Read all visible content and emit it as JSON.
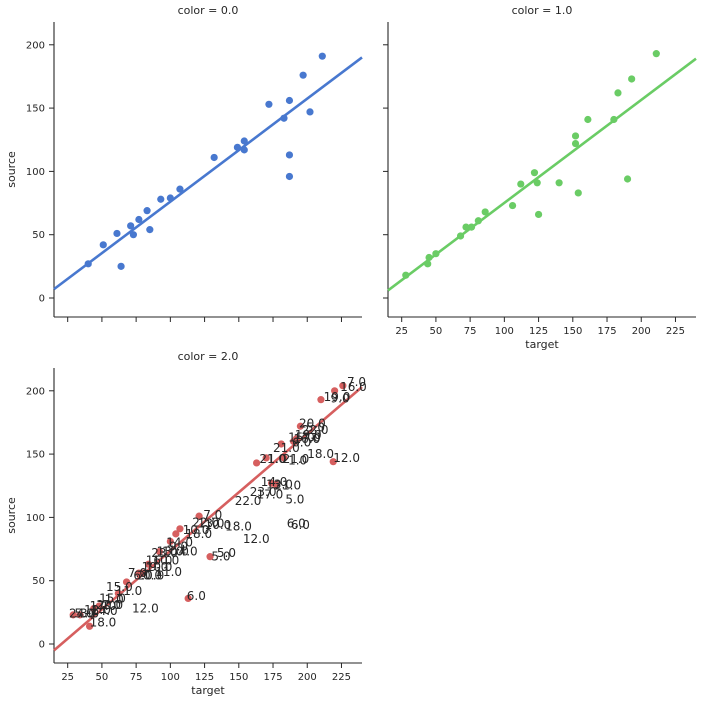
{
  "chart_data": {
    "type": "scatter",
    "layout": "facet-grid 2x2 (color = 0.0, 1.0, 2.0)",
    "xlabel": "target",
    "ylabel": "source",
    "xlim": [
      15,
      240
    ],
    "ylim": [
      -15,
      218
    ],
    "x_ticks": [
      25,
      50,
      75,
      100,
      125,
      150,
      175,
      200,
      225
    ],
    "y_ticks": [
      0,
      50,
      100,
      150,
      200
    ],
    "panels": [
      {
        "title": "color = 0.0",
        "color": "#4878cf",
        "fit_line": {
          "x": [
            15,
            240
          ],
          "y": [
            7,
            190
          ]
        },
        "points": [
          {
            "x": 40,
            "y": 27
          },
          {
            "x": 51,
            "y": 42
          },
          {
            "x": 61,
            "y": 51
          },
          {
            "x": 64,
            "y": 25
          },
          {
            "x": 71,
            "y": 57
          },
          {
            "x": 73,
            "y": 50
          },
          {
            "x": 77,
            "y": 62
          },
          {
            "x": 83,
            "y": 69
          },
          {
            "x": 85,
            "y": 54
          },
          {
            "x": 93,
            "y": 78
          },
          {
            "x": 100,
            "y": 79
          },
          {
            "x": 107,
            "y": 86
          },
          {
            "x": 132,
            "y": 111
          },
          {
            "x": 149,
            "y": 119
          },
          {
            "x": 154,
            "y": 124
          },
          {
            "x": 154,
            "y": 117
          },
          {
            "x": 172,
            "y": 153
          },
          {
            "x": 183,
            "y": 142
          },
          {
            "x": 187,
            "y": 156
          },
          {
            "x": 187,
            "y": 113
          },
          {
            "x": 187,
            "y": 96
          },
          {
            "x": 197,
            "y": 176
          },
          {
            "x": 202,
            "y": 147
          },
          {
            "x": 211,
            "y": 191
          }
        ]
      },
      {
        "title": "color = 1.0",
        "color": "#6acc65",
        "fit_line": {
          "x": [
            15,
            240
          ],
          "y": [
            6,
            189
          ]
        },
        "points": [
          {
            "x": 28,
            "y": 18
          },
          {
            "x": 44,
            "y": 27
          },
          {
            "x": 45,
            "y": 32
          },
          {
            "x": 50,
            "y": 35
          },
          {
            "x": 68,
            "y": 49
          },
          {
            "x": 72,
            "y": 56
          },
          {
            "x": 76,
            "y": 56
          },
          {
            "x": 81,
            "y": 61
          },
          {
            "x": 86,
            "y": 68
          },
          {
            "x": 106,
            "y": 73
          },
          {
            "x": 112,
            "y": 90
          },
          {
            "x": 122,
            "y": 99
          },
          {
            "x": 124,
            "y": 91
          },
          {
            "x": 125,
            "y": 66
          },
          {
            "x": 140,
            "y": 91
          },
          {
            "x": 152,
            "y": 128
          },
          {
            "x": 152,
            "y": 122
          },
          {
            "x": 154,
            "y": 83
          },
          {
            "x": 161,
            "y": 141
          },
          {
            "x": 180,
            "y": 141
          },
          {
            "x": 183,
            "y": 162
          },
          {
            "x": 190,
            "y": 94
          },
          {
            "x": 193,
            "y": 173
          },
          {
            "x": 211,
            "y": 193
          }
        ]
      },
      {
        "title": "color = 2.0",
        "color": "#d65f5f",
        "fit_line": {
          "x": [
            15,
            240
          ],
          "y": [
            -5,
            203
          ]
        },
        "points": [
          {
            "x": 29,
            "y": 23
          },
          {
            "x": 34,
            "y": 23
          },
          {
            "x": 41,
            "y": 14
          },
          {
            "x": 44,
            "y": 28
          },
          {
            "x": 48,
            "y": 30
          },
          {
            "x": 62,
            "y": 40
          },
          {
            "x": 68,
            "y": 49
          },
          {
            "x": 77,
            "y": 56
          },
          {
            "x": 80,
            "y": 56
          },
          {
            "x": 84,
            "y": 63
          },
          {
            "x": 92,
            "y": 73
          },
          {
            "x": 100,
            "y": 81
          },
          {
            "x": 104,
            "y": 87
          },
          {
            "x": 107,
            "y": 91
          },
          {
            "x": 113,
            "y": 36
          },
          {
            "x": 121,
            "y": 101
          },
          {
            "x": 129,
            "y": 69
          },
          {
            "x": 163,
            "y": 143
          },
          {
            "x": 170,
            "y": 147
          },
          {
            "x": 174,
            "y": 127
          },
          {
            "x": 177,
            "y": 126
          },
          {
            "x": 181,
            "y": 158
          },
          {
            "x": 183,
            "y": 147
          },
          {
            "x": 190,
            "y": 160
          },
          {
            "x": 192,
            "y": 162
          },
          {
            "x": 195,
            "y": 172
          },
          {
            "x": 210,
            "y": 193
          },
          {
            "x": 219,
            "y": 144
          },
          {
            "x": 220,
            "y": 200
          },
          {
            "x": 226,
            "y": 204
          }
        ],
        "annotations": [
          {
            "x": 229,
            "y": 207,
            "text": "7.0"
          },
          {
            "x": 224,
            "y": 203,
            "text": "16.0"
          },
          {
            "x": 212,
            "y": 195,
            "text": "19.0"
          },
          {
            "x": 217,
            "y": 194,
            "text": "9.0"
          },
          {
            "x": 194,
            "y": 174,
            "text": "20.0"
          },
          {
            "x": 199,
            "y": 171,
            "text": "5.0"
          },
          {
            "x": 196,
            "y": 169,
            "text": "22.0"
          },
          {
            "x": 191,
            "y": 165,
            "text": "19.0"
          },
          {
            "x": 190,
            "y": 162,
            "text": "16.0"
          },
          {
            "x": 196,
            "y": 163,
            "text": "7.0"
          },
          {
            "x": 186,
            "y": 163,
            "text": "15.0"
          },
          {
            "x": 189,
            "y": 159,
            "text": "6.0"
          },
          {
            "x": 175,
            "y": 155,
            "text": "21.0"
          },
          {
            "x": 200,
            "y": 150,
            "text": "18.0"
          },
          {
            "x": 219,
            "y": 147,
            "text": "12.0"
          },
          {
            "x": 165,
            "y": 146,
            "text": "21.0"
          },
          {
            "x": 171,
            "y": 146,
            "text": "1.0"
          },
          {
            "x": 182,
            "y": 146,
            "text": "21.0"
          },
          {
            "x": 186,
            "y": 145,
            "text": "1.0"
          },
          {
            "x": 166,
            "y": 128,
            "text": "14.0"
          },
          {
            "x": 170,
            "y": 126,
            "text": "13.0"
          },
          {
            "x": 176,
            "y": 125,
            "text": "21.0"
          },
          {
            "x": 158,
            "y": 120,
            "text": "23.0"
          },
          {
            "x": 163,
            "y": 118,
            "text": "17.0"
          },
          {
            "x": 147,
            "y": 113,
            "text": "22.0"
          },
          {
            "x": 184,
            "y": 114,
            "text": "5.0"
          },
          {
            "x": 124,
            "y": 102,
            "text": "7.0"
          },
          {
            "x": 185,
            "y": 95,
            "text": "6.0"
          },
          {
            "x": 188,
            "y": 94,
            "text": "6.0"
          },
          {
            "x": 116,
            "y": 96,
            "text": "22.0"
          },
          {
            "x": 120,
            "y": 95,
            "text": "13.0"
          },
          {
            "x": 125,
            "y": 94,
            "text": "10.0"
          },
          {
            "x": 109,
            "y": 90,
            "text": "10.0"
          },
          {
            "x": 111,
            "y": 87,
            "text": "18.0"
          },
          {
            "x": 140,
            "y": 93,
            "text": "18.0"
          },
          {
            "x": 153,
            "y": 83,
            "text": "12.0"
          },
          {
            "x": 97,
            "y": 80,
            "text": "14.0"
          },
          {
            "x": 99,
            "y": 77,
            "text": "9.0"
          },
          {
            "x": 106,
            "y": 73,
            "text": "4.0"
          },
          {
            "x": 130,
            "y": 69,
            "text": "5.0"
          },
          {
            "x": 134,
            "y": 72,
            "text": "5.0"
          },
          {
            "x": 86,
            "y": 72,
            "text": "23.0"
          },
          {
            "x": 90,
            "y": 73,
            "text": "13.0"
          },
          {
            "x": 94,
            "y": 73,
            "text": "10.0"
          },
          {
            "x": 82,
            "y": 66,
            "text": "16.0"
          },
          {
            "x": 87,
            "y": 66,
            "text": "10.0"
          },
          {
            "x": 79,
            "y": 61,
            "text": "19.0"
          },
          {
            "x": 82,
            "y": 61,
            "text": "10.0"
          },
          {
            "x": 89,
            "y": 57,
            "text": "11.0"
          },
          {
            "x": 69,
            "y": 56,
            "text": "7.0"
          },
          {
            "x": 73,
            "y": 54,
            "text": "6.0"
          },
          {
            "x": 76,
            "y": 54,
            "text": "20.0"
          },
          {
            "x": 80,
            "y": 54,
            "text": "0.0"
          },
          {
            "x": 53,
            "y": 45,
            "text": "15.0"
          },
          {
            "x": 60,
            "y": 42,
            "text": "11.0"
          },
          {
            "x": 112,
            "y": 38,
            "text": "6.0"
          },
          {
            "x": 48,
            "y": 36,
            "text": "15.0"
          },
          {
            "x": 52,
            "y": 35,
            "text": "1.0"
          },
          {
            "x": 41,
            "y": 30,
            "text": "17.0"
          },
          {
            "x": 46,
            "y": 31,
            "text": "20.0"
          },
          {
            "x": 50,
            "y": 31,
            "text": "2.0"
          },
          {
            "x": 37,
            "y": 27,
            "text": "12.0"
          },
          {
            "x": 42,
            "y": 26,
            "text": "14.0"
          },
          {
            "x": 26,
            "y": 24,
            "text": "24.0"
          },
          {
            "x": 30,
            "y": 24,
            "text": "5.0"
          },
          {
            "x": 34,
            "y": 24,
            "text": "3.0"
          },
          {
            "x": 72,
            "y": 28,
            "text": "12.0"
          },
          {
            "x": 41,
            "y": 17,
            "text": "18.0"
          }
        ]
      }
    ]
  }
}
